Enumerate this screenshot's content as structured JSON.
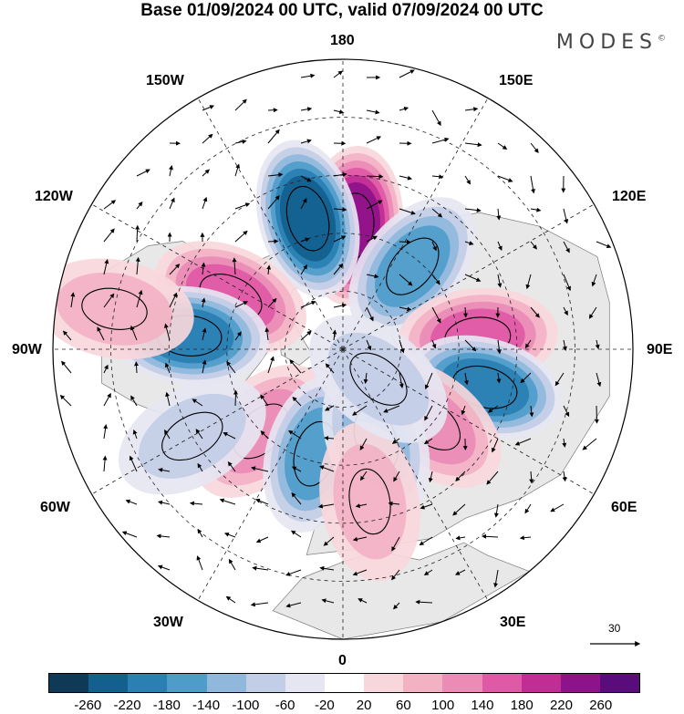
{
  "title": "Base 01/09/2024 00 UTC, valid 07/09/2024 00 UTC",
  "brand": "MODES",
  "brand_mark": "©",
  "longitude_labels": {
    "top": "180",
    "bottom": "0",
    "left": "90W",
    "right": "90E",
    "upper_left_1": "150W",
    "upper_left_2": "120W",
    "upper_right_1": "150E",
    "upper_right_2": "120E",
    "lower_left_1": "60W",
    "lower_left_2": "30W",
    "lower_right_1": "60E",
    "lower_right_2": "30E"
  },
  "reference_vector_label": "30",
  "colorbar": {
    "ticks": [
      "-260",
      "-220",
      "-180",
      "-140",
      "-100",
      "-60",
      "-20",
      "20",
      "60",
      "100",
      "140",
      "180",
      "220",
      "260"
    ],
    "colors": [
      "#0e3a57",
      "#12608e",
      "#2a7fb3",
      "#4e9cca",
      "#8fb8dc",
      "#c2cde6",
      "#e6e6f2",
      "#ffffff",
      "#f8d7dc",
      "#f2b2c4",
      "#ec8cb6",
      "#e059a6",
      "#c22d95",
      "#8e1289",
      "#5a0c7c"
    ]
  },
  "colors": {
    "land": "#e8e8e8",
    "ocean": "#ffffff",
    "graticule": "#222222"
  },
  "anomaly_centres": [
    {
      "lon": 175,
      "lat": 58,
      "value": 240,
      "note": "positive"
    },
    {
      "lon": -165,
      "lat": 55,
      "value": -220,
      "note": "negative"
    },
    {
      "lon": 140,
      "lat": 62,
      "value": -140,
      "note": "negative"
    },
    {
      "lon": -115,
      "lat": 58,
      "value": 170,
      "note": "positive"
    },
    {
      "lon": -95,
      "lat": 50,
      "value": -200,
      "note": "negative"
    },
    {
      "lon": 95,
      "lat": 55,
      "value": 140,
      "note": "positive"
    },
    {
      "lon": 75,
      "lat": 52,
      "value": -180,
      "note": "negative"
    },
    {
      "lon": 50,
      "lat": 60,
      "value": 120,
      "note": "positive"
    },
    {
      "lon": -45,
      "lat": 60,
      "value": 100,
      "note": "positive"
    },
    {
      "lon": -15,
      "lat": 62,
      "value": -140,
      "note": "negative"
    },
    {
      "lon": 20,
      "lat": 65,
      "value": -100,
      "note": "negative"
    },
    {
      "lon": 10,
      "lat": 50,
      "value": 60,
      "note": "positive"
    },
    {
      "lon": -60,
      "lat": 45,
      "value": -80,
      "note": "negative"
    },
    {
      "lon": -100,
      "lat": 30,
      "value": 80,
      "note": "positive"
    },
    {
      "lon": 50,
      "lat": 78,
      "value": -60,
      "note": "negative"
    }
  ]
}
